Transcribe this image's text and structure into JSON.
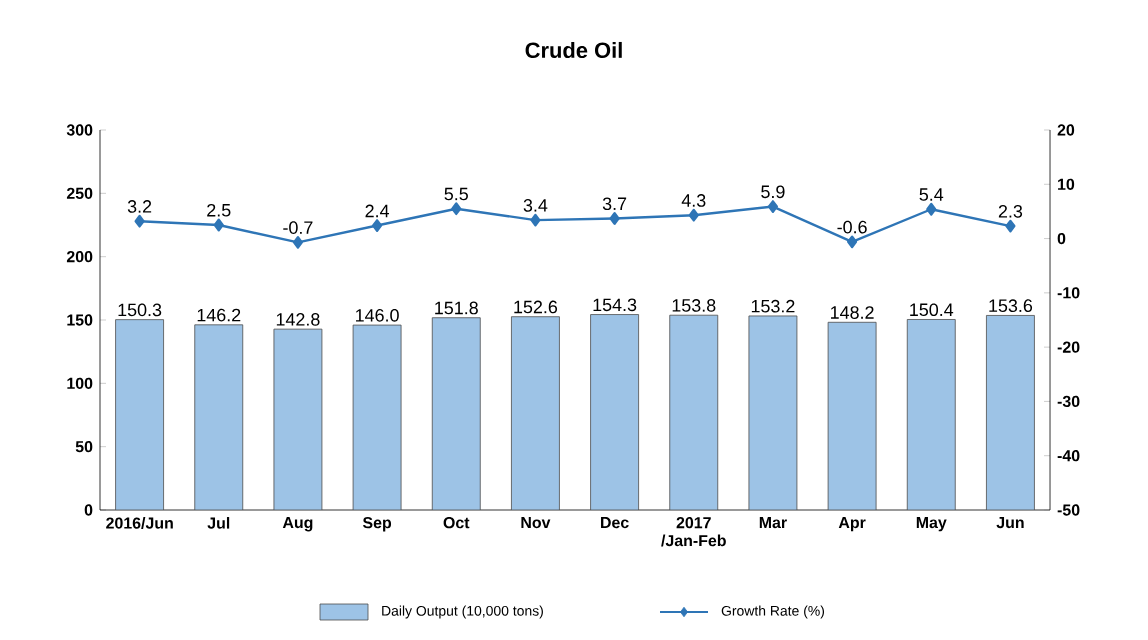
{
  "chart_data": {
    "type": "bar",
    "title": "Crude Oil",
    "categories": [
      "2016/Jun",
      "Jul",
      "Aug",
      "Sep",
      "Oct",
      "Nov",
      "Dec",
      "2017 /Jan-Feb",
      "Mar",
      "Apr",
      "May",
      "Jun"
    ],
    "series": [
      {
        "name": "Daily Output (10,000 tons)",
        "color": "#9dc3e6",
        "values": [
          150.3,
          146.2,
          142.8,
          146.0,
          151.8,
          152.6,
          154.3,
          153.8,
          153.2,
          148.2,
          150.4,
          153.6
        ],
        "value_labels": [
          "150.3",
          "146.2",
          "142.8",
          "146.0",
          "151.8",
          "152.6",
          "154.3",
          "153.8",
          "153.2",
          "148.2",
          "150.4",
          "153.6"
        ]
      },
      {
        "name": "Growth Rate (%)",
        "type": "line",
        "axis": "y2",
        "color": "#2e75b6",
        "marker": "diamond",
        "values": [
          3.2,
          2.5,
          -0.7,
          2.4,
          5.5,
          3.4,
          3.7,
          4.3,
          5.9,
          -0.6,
          5.4,
          2.3
        ]
      }
    ],
    "ylim": [
      0,
      300
    ],
    "yticks": [
      0,
      50,
      100,
      150,
      200,
      250,
      300
    ],
    "y2lim": [
      -50,
      20
    ],
    "y2ticks": [
      -50,
      -40,
      -30,
      -20,
      -10,
      0,
      10,
      20
    ],
    "data_labels": true,
    "legend": "bottom",
    "grid": false
  }
}
